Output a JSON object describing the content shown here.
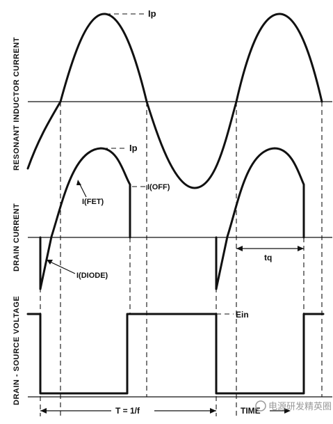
{
  "labels": {
    "ip_top": "Ip",
    "ip_mid": "Ip",
    "i_fet": "I(FET)",
    "i_off": "I(OFF)",
    "i_diode": "I(DIODE)",
    "tq": "tq",
    "ein": "Ein",
    "period": "T = 1/f",
    "time": "TIME"
  },
  "axis_titles": {
    "top": "RESONANT INDUCTOR CURRENT",
    "middle": "DRAIN CURRENT",
    "bottom": "DRAIN - SOURCE VOLTAGE"
  },
  "watermark": "电源研发精英圈"
}
